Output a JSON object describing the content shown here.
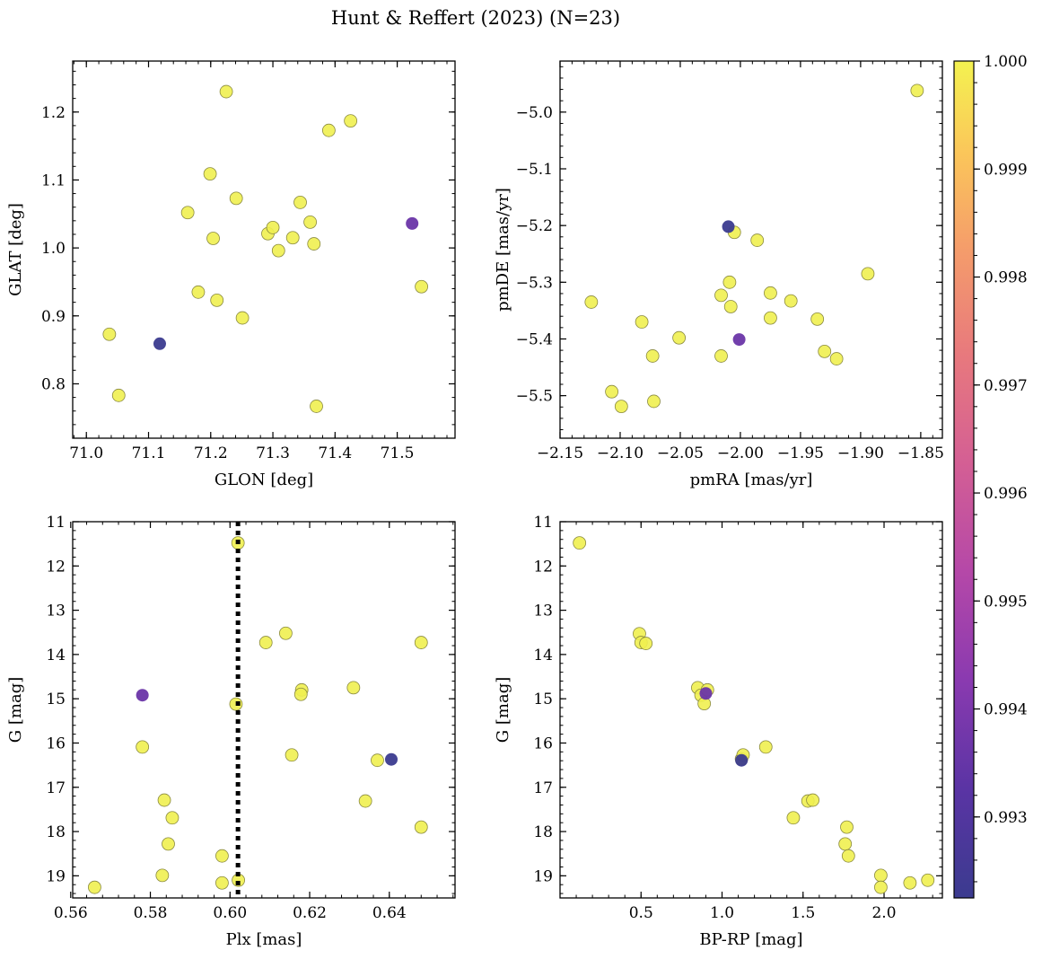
{
  "figure_title": "Hunt & Reffert (2023) (N=23)",
  "colorbar": {
    "vmin": 0.99225,
    "vmax": 1.0,
    "ticks": [
      0.993,
      0.994,
      0.995,
      0.996,
      0.997,
      0.998,
      0.999,
      1.0
    ],
    "tick_labels": [
      "0.993",
      "0.994",
      "0.995",
      "0.996",
      "0.997",
      "0.998",
      "0.999",
      "1.000"
    ],
    "colormap": "plasma"
  },
  "marker_edge_color": "#8a8a40",
  "chart_data": [
    {
      "id": "glon-glat",
      "type": "scatter",
      "title": "",
      "xlabel": "GLON [deg]",
      "ylabel": "GLAT [deg]",
      "xlim": [
        70.978,
        71.593
      ],
      "ylim": [
        0.72,
        1.275
      ],
      "xticks": [
        71.0,
        71.1,
        71.2,
        71.3,
        71.4,
        71.5
      ],
      "xtick_labels": [
        "71.0",
        "71.1",
        "71.2",
        "71.3",
        "71.4",
        "71.5"
      ],
      "yticks": [
        0.8,
        0.9,
        1.0,
        1.1,
        1.2
      ],
      "ytick_labels": [
        "0.8",
        "0.9",
        "1.0",
        "1.1",
        "1.2"
      ],
      "x": [
        71.037,
        71.052,
        71.118,
        71.163,
        71.18,
        71.199,
        71.204,
        71.21,
        71.225,
        71.241,
        71.251,
        71.292,
        71.3,
        71.309,
        71.332,
        71.344,
        71.36,
        71.366,
        71.37,
        71.39,
        71.425,
        71.524,
        71.539
      ],
      "y": [
        0.873,
        0.783,
        0.859,
        1.052,
        0.935,
        1.109,
        1.014,
        0.923,
        1.23,
        1.073,
        0.897,
        1.021,
        1.03,
        0.996,
        1.015,
        1.067,
        1.038,
        1.006,
        0.767,
        1.173,
        1.187,
        1.036,
        0.943
      ],
      "prob": [
        1,
        1,
        0.99225,
        1,
        1,
        1,
        1,
        1,
        1,
        1,
        1,
        1,
        1,
        1,
        1,
        1,
        1,
        1,
        1,
        1,
        1,
        0.9938,
        1
      ]
    },
    {
      "id": "pm",
      "type": "scatter",
      "title": "",
      "xlabel": "pmRA [mas/yr]",
      "ylabel": "pmDE [mas/yr]",
      "xlim": [
        -2.15,
        -1.832
      ],
      "ylim": [
        -5.575,
        -4.91
      ],
      "xticks": [
        -2.15,
        -2.1,
        -2.05,
        -2.0,
        -1.95,
        -1.9,
        -1.85
      ],
      "xtick_labels": [
        "−2.15",
        "−2.10",
        "−2.05",
        "−2.00",
        "−1.95",
        "−1.90",
        "−1.85"
      ],
      "yticks": [
        -5.5,
        -5.4,
        -5.3,
        -5.2,
        -5.1,
        -5.0
      ],
      "ytick_labels": [
        "−5.5",
        "−5.4",
        "−5.3",
        "−5.2",
        "−5.1",
        "−5.0"
      ],
      "x": [
        -2.124,
        -2.107,
        -2.099,
        -2.082,
        -2.073,
        -2.072,
        -2.051,
        -2.016,
        -2.016,
        -2.01,
        -2.009,
        -2.008,
        -2.005,
        -2.001,
        -1.986,
        -1.975,
        -1.975,
        -1.958,
        -1.936,
        -1.93,
        -1.92,
        -1.894,
        -1.853
      ],
      "y": [
        -5.335,
        -5.493,
        -5.519,
        -5.37,
        -5.43,
        -5.51,
        -5.398,
        -5.43,
        -5.323,
        -5.202,
        -5.3,
        -5.343,
        -5.212,
        -5.401,
        -5.226,
        -5.319,
        -5.363,
        -5.333,
        -5.365,
        -5.422,
        -5.435,
        -5.285,
        -4.962
      ],
      "prob": [
        1,
        1,
        1,
        1,
        1,
        1,
        1,
        1,
        1,
        0.99225,
        1,
        1,
        1,
        0.9938,
        1,
        1,
        1,
        1,
        1,
        1,
        1,
        1,
        1
      ]
    },
    {
      "id": "plx-g",
      "type": "scatter",
      "title": "",
      "xlabel": "Plx [mas]",
      "ylabel": "G [mag]",
      "xlim": [
        0.5605,
        0.6565
      ],
      "ylim": [
        19.5,
        11.0
      ],
      "xticks": [
        0.56,
        0.58,
        0.6,
        0.62,
        0.64
      ],
      "xtick_labels": [
        "0.56",
        "0.58",
        "0.60",
        "0.62",
        "0.64"
      ],
      "yticks": [
        11,
        12,
        13,
        14,
        15,
        16,
        17,
        18,
        19
      ],
      "ytick_labels": [
        "11",
        "12",
        "13",
        "14",
        "15",
        "16",
        "17",
        "18",
        "19"
      ],
      "vline": {
        "x": 0.602,
        "style": "dotted",
        "color": "#000000"
      },
      "x": [
        0.602,
        0.614,
        0.609,
        0.648,
        0.578,
        0.6015,
        0.618,
        0.6178,
        0.631,
        0.578,
        0.6155,
        0.637,
        0.6405,
        0.5835,
        0.634,
        0.5855,
        0.648,
        0.5845,
        0.598,
        0.583,
        0.598,
        0.6021,
        0.566
      ],
      "y": [
        11.48,
        13.52,
        13.73,
        13.73,
        14.92,
        15.12,
        14.8,
        14.9,
        14.75,
        16.09,
        16.27,
        16.39,
        16.37,
        17.29,
        17.31,
        17.69,
        17.9,
        18.28,
        18.55,
        18.99,
        19.16,
        19.1,
        19.26
      ],
      "prob": [
        1,
        1,
        1,
        1,
        0.9938,
        1,
        1,
        1,
        1,
        1,
        1,
        1,
        0.99225,
        1,
        1,
        1,
        1,
        1,
        1,
        1,
        1,
        1,
        1
      ]
    },
    {
      "id": "cmd",
      "type": "scatter",
      "title": "",
      "xlabel": "BP-RP [mag]",
      "ylabel": "G [mag]",
      "xlim": [
        0.0,
        2.36
      ],
      "ylim": [
        19.5,
        11.0
      ],
      "xticks": [
        0.5,
        1.0,
        1.5,
        2.0
      ],
      "xtick_labels": [
        "0.5",
        "1.0",
        "1.5",
        "2.0"
      ],
      "yticks": [
        11,
        12,
        13,
        14,
        15,
        16,
        17,
        18,
        19
      ],
      "ytick_labels": [
        "11",
        "12",
        "13",
        "14",
        "15",
        "16",
        "17",
        "18",
        "19"
      ],
      "x": [
        0.12,
        0.49,
        0.5,
        0.53,
        0.85,
        0.87,
        0.9,
        0.91,
        0.89,
        1.12,
        1.12,
        1.13,
        1.27,
        1.44,
        1.53,
        1.56,
        1.77,
        1.76,
        1.78,
        1.98,
        1.98,
        2.16,
        2.27
      ],
      "y": [
        11.48,
        13.53,
        13.73,
        13.75,
        14.75,
        14.92,
        14.88,
        14.8,
        15.11,
        16.39,
        16.36,
        16.27,
        16.09,
        17.69,
        17.31,
        17.29,
        17.9,
        18.28,
        18.55,
        18.99,
        19.26,
        19.16,
        19.1
      ],
      "prob": [
        1,
        1,
        1,
        1,
        1,
        1,
        0.9938,
        1,
        1,
        0.99225,
        1,
        1,
        1,
        1,
        1,
        1,
        1,
        1,
        1,
        1,
        1,
        1,
        1
      ]
    }
  ]
}
